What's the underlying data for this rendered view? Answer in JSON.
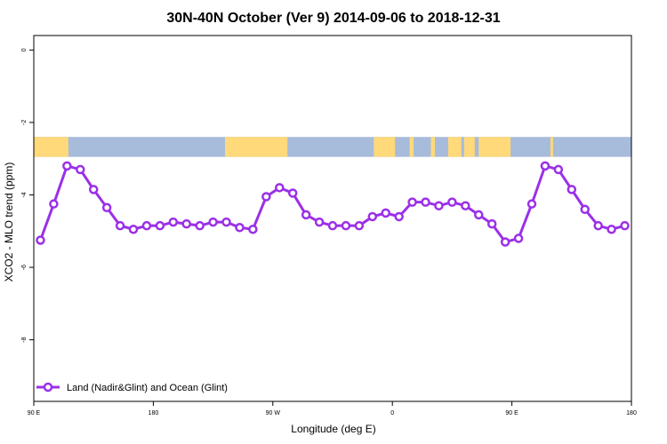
{
  "chart_data": {
    "type": "line",
    "title": "30N-40N October (Ver 9)   2014-09-06 to 2018-12-31",
    "xlabel": "Longitude (deg E)",
    "ylabel": "XCO2 - MLO trend (ppm)",
    "xlim": [
      90,
      540
    ],
    "ylim": [
      -9.7,
      0.4
    ],
    "x_ticks": [
      {
        "value": 90,
        "label": "90 E"
      },
      {
        "value": 180,
        "label": "180"
      },
      {
        "value": 270,
        "label": "90 W"
      },
      {
        "value": 360,
        "label": "0"
      },
      {
        "value": 450,
        "label": "90 E"
      },
      {
        "value": 540,
        "label": "180"
      }
    ],
    "y_ticks": [
      {
        "value": 0,
        "label": "0"
      },
      {
        "value": -2,
        "label": "-2"
      },
      {
        "value": -4,
        "label": "-4"
      },
      {
        "value": -6,
        "label": "-6"
      },
      {
        "value": -8,
        "label": "-8"
      }
    ],
    "grid": false,
    "legend_position": "bottom-left",
    "series": [
      {
        "name": "Land (Nadir&Glint) and Ocean (Glint)",
        "color": "#9b30e8",
        "x": [
          95,
          105,
          115,
          125,
          135,
          145,
          155,
          165,
          175,
          185,
          195,
          205,
          215,
          225,
          235,
          245,
          255,
          265,
          275,
          285,
          295,
          305,
          315,
          325,
          335,
          345,
          355,
          365,
          375,
          385,
          395,
          405,
          415,
          425,
          435,
          445,
          455,
          465,
          475,
          485,
          495,
          505,
          515,
          525,
          535
        ],
        "y": [
          -5.25,
          -4.25,
          -3.2,
          -3.3,
          -3.85,
          -4.35,
          -4.85,
          -4.95,
          -4.85,
          -4.85,
          -4.75,
          -4.8,
          -4.85,
          -4.75,
          -4.75,
          -4.9,
          -4.95,
          -4.05,
          -3.8,
          -3.95,
          -4.55,
          -4.75,
          -4.85,
          -4.85,
          -4.85,
          -4.6,
          -4.5,
          -4.6,
          -4.2,
          -4.2,
          -4.3,
          -4.2,
          -4.3,
          -4.55,
          -4.8,
          -5.3,
          -5.2,
          -4.25,
          -3.2,
          -3.3,
          -3.85,
          -4.4,
          -4.85,
          -4.95,
          -4.85
        ]
      }
    ],
    "land_ocean_band": {
      "y_top": -2.4,
      "y_bottom": -2.95,
      "land_color": "#ffd97a",
      "ocean_color": "#a7bbdb",
      "land_segments": [
        [
          90,
          116
        ],
        [
          234,
          281
        ],
        [
          346,
          362
        ],
        [
          373,
          376
        ],
        [
          389,
          392
        ],
        [
          402,
          412
        ],
        [
          414,
          422
        ],
        [
          425,
          449
        ],
        [
          479,
          481
        ]
      ]
    }
  }
}
